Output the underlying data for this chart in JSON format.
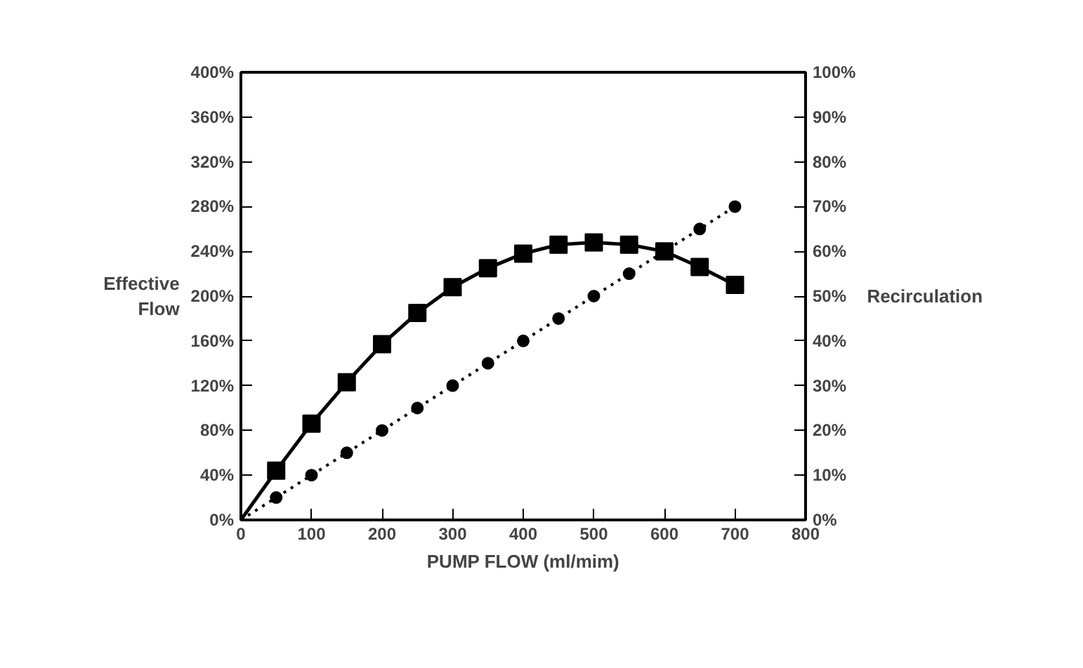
{
  "chart_data": {
    "type": "line",
    "xlabel": "PUMP FLOW (ml/mim)",
    "ylabel": "Effective\nFlow",
    "y2label": "Recirculation",
    "xlim": [
      0,
      800
    ],
    "xticks": [
      0,
      100,
      200,
      300,
      400,
      500,
      600,
      700,
      800
    ],
    "ylim": [
      0,
      400
    ],
    "yticks": [
      {
        "value": 0,
        "label": "0%"
      },
      {
        "value": 40,
        "label": "40%"
      },
      {
        "value": 80,
        "label": "80%"
      },
      {
        "value": 120,
        "label": "120%"
      },
      {
        "value": 160,
        "label": "160%"
      },
      {
        "value": 200,
        "label": "200%"
      },
      {
        "value": 240,
        "label": "240%"
      },
      {
        "value": 280,
        "label": "280%"
      },
      {
        "value": 320,
        "label": "320%"
      },
      {
        "value": 360,
        "label": "360%"
      },
      {
        "value": 400,
        "label": "400%"
      }
    ],
    "y2lim": [
      0,
      100
    ],
    "y2ticks": [
      {
        "value": 0,
        "label": "0%"
      },
      {
        "value": 10,
        "label": "10%"
      },
      {
        "value": 20,
        "label": "20%"
      },
      {
        "value": 30,
        "label": "30%"
      },
      {
        "value": 40,
        "label": "40%"
      },
      {
        "value": 50,
        "label": "50%"
      },
      {
        "value": 60,
        "label": "60%"
      },
      {
        "value": 70,
        "label": "70%"
      },
      {
        "value": 80,
        "label": "80%"
      },
      {
        "value": 90,
        "label": "90%"
      },
      {
        "value": 100,
        "label": "100%"
      }
    ],
    "x": [
      0,
      50,
      100,
      150,
      200,
      250,
      300,
      350,
      400,
      450,
      500,
      550,
      600,
      650,
      700
    ],
    "series": [
      {
        "color": "#000000",
        "marker": "square",
        "line_style": "solid",
        "values": [
          0,
          44,
          86,
          123,
          157,
          185,
          208,
          225,
          238,
          246,
          248,
          246,
          240,
          226,
          210
        ]
      },
      {
        "color": "#000000",
        "marker": "circle",
        "line_style": "dotted",
        "axis": "y2",
        "values": [
          0,
          5,
          10,
          15,
          20,
          25,
          30,
          35,
          40,
          45,
          50,
          55,
          60,
          65,
          70
        ]
      }
    ],
    "grid": false
  }
}
